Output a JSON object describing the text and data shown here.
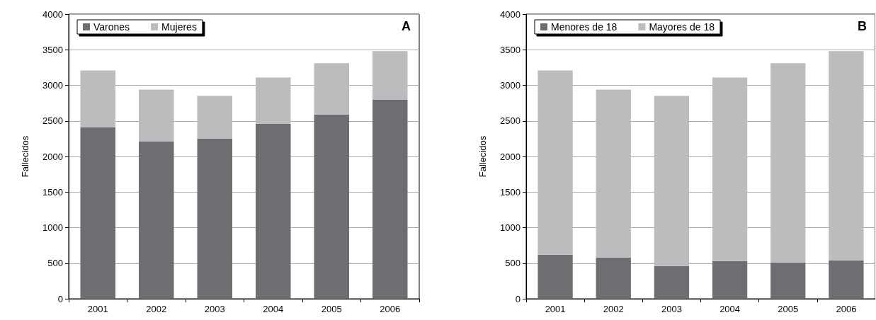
{
  "chart_data": [
    {
      "type": "bar",
      "stacked": true,
      "categories": [
        "2001",
        "2002",
        "2003",
        "2004",
        "2005",
        "2006"
      ],
      "ylabel": "Fallecidos",
      "ylim": [
        0,
        4000
      ],
      "yticks": [
        0,
        500,
        1000,
        1500,
        2000,
        2500,
        3000,
        3500,
        4000
      ],
      "grid": "y",
      "legend": "top left",
      "annotations": [
        "A"
      ],
      "series": [
        {
          "name": "Varones",
          "color": "#6d6e71",
          "values": [
            2410,
            2210,
            2250,
            2460,
            2590,
            2800
          ]
        },
        {
          "name": "Mujeres",
          "color": "#bbbcbe",
          "values": [
            800,
            730,
            600,
            650,
            720,
            680
          ]
        }
      ]
    },
    {
      "type": "bar",
      "stacked": true,
      "categories": [
        "2001",
        "2002",
        "2003",
        "2004",
        "2005",
        "2006"
      ],
      "ylabel": "Fallecidos",
      "ylim": [
        0,
        4000
      ],
      "yticks": [
        0,
        500,
        1000,
        1500,
        2000,
        2500,
        3000,
        3500,
        4000
      ],
      "grid": "y",
      "legend": "top left",
      "annotations": [
        "B"
      ],
      "series": [
        {
          "name": "Menores de 18",
          "color": "#6d6e71",
          "values": [
            620,
            580,
            460,
            530,
            510,
            540
          ]
        },
        {
          "name": "Mayores de 18",
          "color": "#bbbcbe",
          "values": [
            2590,
            2360,
            2390,
            2580,
            2800,
            2940
          ]
        }
      ]
    }
  ]
}
